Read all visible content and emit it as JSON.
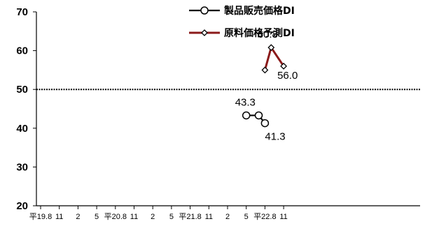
{
  "chart_data": {
    "type": "line",
    "x_labels": [
      "平19.8",
      "11",
      "2",
      "5",
      "平20.8",
      "11",
      "2",
      "5",
      "平21.8",
      "11",
      "2",
      "5",
      "平22.8",
      "11"
    ],
    "ylim": [
      20,
      70
    ],
    "yticks": [
      20,
      30,
      40,
      50,
      60,
      70
    ],
    "reference_line": 50,
    "grid": false,
    "legend_position": "top-right",
    "series": [
      {
        "name": "製品販売価格DI",
        "color": "#000000",
        "marker": "circle",
        "points": [
          {
            "x": "平22.5",
            "y": 43.3
          },
          {
            "x": "平22.7",
            "y": 43.3
          },
          {
            "x": "平22.8",
            "y": 41.3
          }
        ]
      },
      {
        "name": "原料価格予測DI",
        "color": "#8B1A1A",
        "marker": "diamond",
        "points": [
          {
            "x": "平22.8",
            "y": 55.0
          },
          {
            "x": "平22.9",
            "y": 60.8
          },
          {
            "x": "平22.11",
            "y": 56.0
          }
        ]
      }
    ],
    "data_labels": [
      {
        "series": 0,
        "point": 0,
        "text": "43.3"
      },
      {
        "series": 0,
        "point": 2,
        "text": "41.3"
      },
      {
        "series": 1,
        "point": 1,
        "text": "60.8"
      },
      {
        "series": 1,
        "point": 2,
        "text": "56.0"
      }
    ]
  }
}
